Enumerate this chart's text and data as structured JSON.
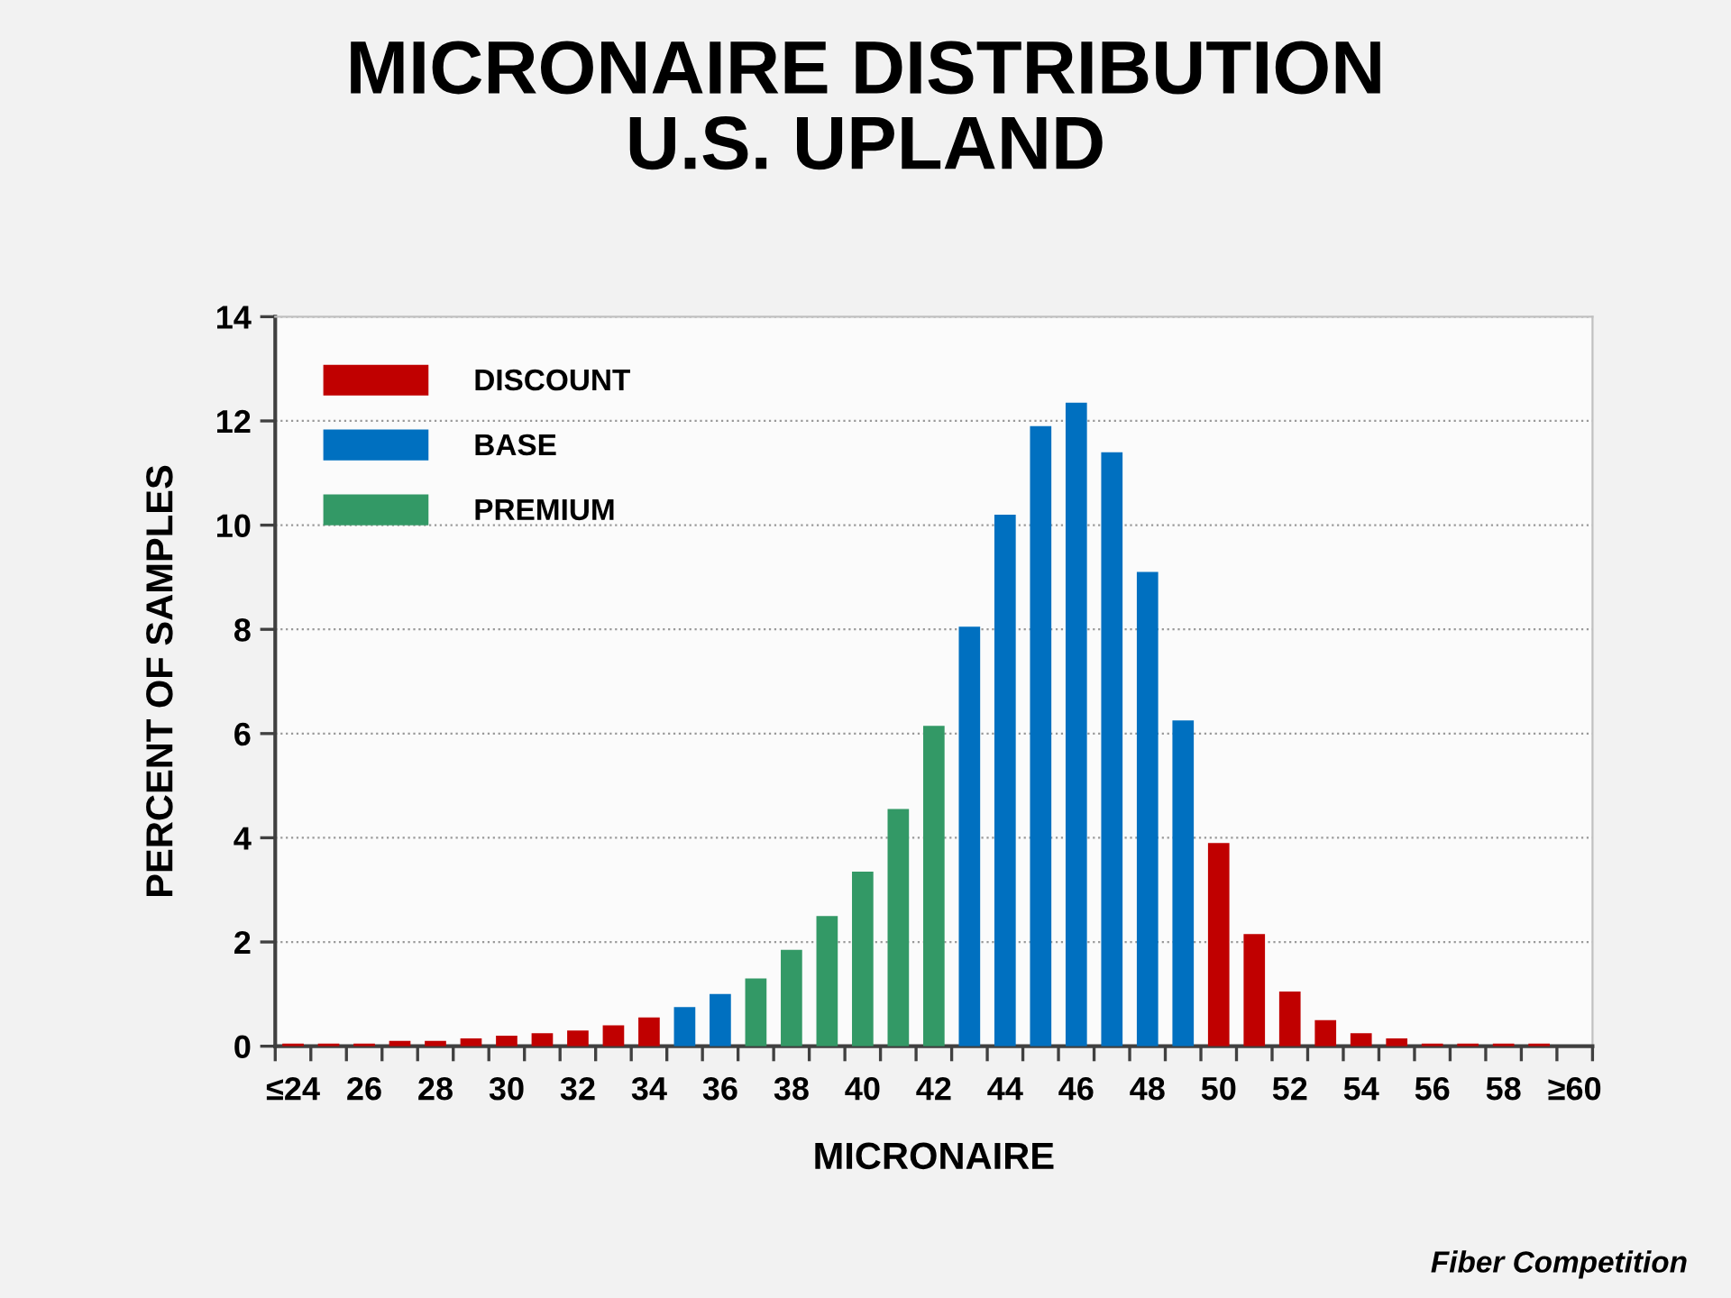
{
  "chart_data": {
    "type": "bar",
    "title": "MICRONAIRE DISTRIBUTION\nU.S. UPLAND",
    "xlabel": "MICRONAIRE",
    "ylabel": "PERCENT OF SAMPLES",
    "categories": [
      "≤24",
      null,
      "26",
      null,
      "28",
      null,
      "30",
      null,
      "32",
      null,
      "34",
      null,
      "36",
      null,
      "38",
      null,
      "40",
      null,
      "42",
      null,
      "44",
      null,
      "46",
      null,
      "48",
      null,
      "50",
      null,
      "52",
      null,
      "54",
      null,
      "56",
      null,
      "58",
      null,
      "≥60"
    ],
    "series": [
      {
        "name": "DISCOUNT",
        "color": "#c00000",
        "values": [
          0.05,
          0.05,
          0.05,
          0.1,
          0.1,
          0.15,
          0.2,
          0.25,
          0.3,
          0.4,
          0.55,
          null,
          null,
          null,
          null,
          null,
          null,
          null,
          null,
          null,
          null,
          null,
          null,
          null,
          null,
          null,
          3.9,
          2.15,
          1.05,
          0.5,
          0.25,
          0.15,
          0.05,
          0.05,
          0.05,
          0.05,
          0
        ]
      },
      {
        "name": "BASE",
        "color": "#0070c0",
        "values": [
          null,
          null,
          null,
          null,
          null,
          null,
          null,
          null,
          null,
          null,
          null,
          0.75,
          1.0,
          null,
          null,
          null,
          null,
          null,
          null,
          8.05,
          10.2,
          11.9,
          12.35,
          11.4,
          9.1,
          6.25,
          null,
          null,
          null,
          null,
          null,
          null,
          null,
          null,
          null,
          null,
          null
        ]
      },
      {
        "name": "PREMIUM",
        "color": "#339966",
        "values": [
          null,
          null,
          null,
          null,
          null,
          null,
          null,
          null,
          null,
          null,
          null,
          null,
          null,
          1.3,
          1.85,
          2.5,
          3.35,
          4.55,
          6.15,
          null,
          null,
          null,
          null,
          null,
          null,
          null,
          null,
          null,
          null,
          null,
          null,
          null,
          null,
          null,
          null,
          null,
          null
        ]
      }
    ],
    "ylim": [
      0,
      14
    ],
    "yticks": [
      0,
      2,
      4,
      6,
      8,
      10,
      12,
      14
    ],
    "grid": "y",
    "legend": "top left",
    "annotations": [
      "Fiber Competition"
    ]
  }
}
